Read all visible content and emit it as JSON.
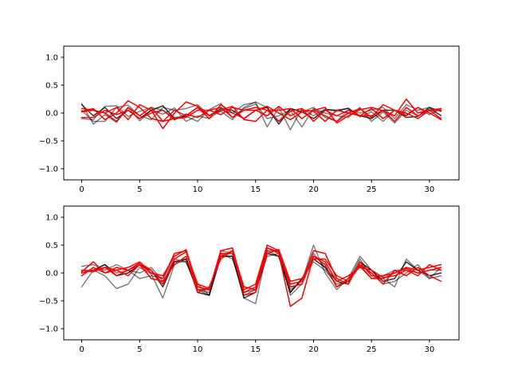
{
  "chart_data": [
    {
      "type": "line",
      "title": "",
      "xlabel": "",
      "ylabel": "",
      "xlim": [
        -1.55,
        32.55
      ],
      "ylim": [
        -1.2,
        1.2
      ],
      "xticks": [
        0,
        5,
        10,
        15,
        20,
        25,
        30
      ],
      "yticks": [
        -1.0,
        -0.5,
        0.0,
        0.5,
        1.0
      ],
      "ytick_labels": [
        "−1.0",
        "−0.5",
        "0.0",
        "0.5",
        "1.0"
      ],
      "grid": false,
      "legend": false,
      "series": [
        {
          "color": "#000000",
          "opacity": 0.5,
          "values": [
            0.17,
            -0.2,
            -0.03,
            -0.17,
            0.1,
            -0.14,
            0.05,
            -0.02,
            0.09,
            -0.15,
            -0.05,
            -0.1,
            0.05,
            0.0,
            0.15,
            0.19,
            -0.25,
            0.1,
            -0.3,
            0.08,
            -0.05,
            0.07,
            0.03,
            0.09,
            -0.07,
            0.02,
            -0.15,
            0.05,
            -0.03,
            0.1,
            -0.03,
            0.08
          ]
        },
        {
          "color": "#000000",
          "opacity": 0.5,
          "values": [
            -0.1,
            -0.12,
            0.12,
            0.13,
            -0.06,
            0.03,
            0.1,
            0.05,
            -0.08,
            -0.06,
            -0.15,
            0.06,
            0.17,
            -0.08,
            0.08,
            0.16,
            -0.1,
            -0.05,
            0.05,
            -0.25,
            0.08,
            0.0,
            -0.05,
            -0.08,
            0.1,
            -0.15,
            0.02,
            -0.18,
            0.05,
            -0.05,
            0.07,
            -0.04
          ]
        },
        {
          "color": "#000000",
          "opacity": 0.5,
          "values": [
            0.05,
            -0.15,
            -0.15,
            0.1,
            0.14,
            -0.05,
            -0.12,
            0.1,
            0.05,
            0.08,
            0.15,
            -0.04,
            0.03,
            -0.12,
            0.1,
            0.2,
            0.1,
            -0.15,
            0.08,
            0.02,
            0.1,
            -0.08,
            -0.15,
            0.05,
            0.0,
            0.05,
            0.1,
            -0.1,
            0.15,
            0.05,
            0.1,
            -0.05
          ]
        },
        {
          "color": "#000000",
          "opacity": 0.8,
          "values": [
            0.15,
            -0.05,
            0.1,
            -0.1,
            0.05,
            -0.1,
            0.05,
            0.13,
            -0.1,
            -0.05,
            0.1,
            -0.05,
            0.08,
            0.05,
            -0.1,
            0.05,
            0.1,
            -0.2,
            0.08,
            0.02,
            -0.1,
            0.06,
            0.05,
            0.08,
            -0.05,
            -0.1,
            0.05,
            0.05,
            -0.08,
            -0.06,
            0.1,
            0.03
          ]
        },
        {
          "color": "#ff0000",
          "opacity": 1.0,
          "values": [
            0.03,
            0.08,
            -0.12,
            0.0,
            0.22,
            0.1,
            -0.1,
            -0.15,
            0.05,
            -0.05,
            0.1,
            -0.1,
            0.15,
            0.0,
            -0.1,
            0.05,
            0.12,
            0.0,
            -0.12,
            0.02,
            0.05,
            0.1,
            -0.18,
            -0.05,
            0.06,
            0.1,
            0.04,
            -0.05,
            0.25,
            0.0,
            0.05,
            0.05
          ]
        },
        {
          "color": "#ff0000",
          "opacity": 1.0,
          "values": [
            0.08,
            0.05,
            0.0,
            0.1,
            -0.12,
            0.15,
            0.05,
            -0.28,
            0.0,
            0.2,
            0.12,
            -0.05,
            0.05,
            0.12,
            -0.12,
            -0.15,
            0.05,
            0.05,
            0.08,
            -0.1,
            0.05,
            -0.05,
            -0.15,
            0.0,
            0.08,
            -0.08,
            0.15,
            0.05,
            0.0,
            -0.1,
            0.05,
            -0.1
          ]
        },
        {
          "color": "#ff0000",
          "opacity": 1.0,
          "values": [
            -0.08,
            -0.08,
            0.05,
            -0.03,
            0.05,
            -0.1,
            0.0,
            0.05,
            -0.12,
            -0.02,
            -0.08,
            0.05,
            -0.03,
            0.1,
            0.05,
            0.1,
            0.05,
            -0.15,
            0.03,
            0.08,
            -0.15,
            0.05,
            -0.05,
            0.05,
            -0.05,
            0.08,
            -0.1,
            0.05,
            -0.05,
            0.1,
            0.0,
            -0.12
          ]
        },
        {
          "color": "#ff0000",
          "opacity": 1.0,
          "values": [
            0.02,
            0.05,
            0.0,
            -0.15,
            0.1,
            -0.05,
            0.1,
            -0.15,
            -0.1,
            -0.08,
            0.05,
            0.05,
            0.1,
            -0.08,
            0.05,
            0.05,
            -0.05,
            0.12,
            -0.05,
            0.05,
            0.03,
            -0.15,
            0.05,
            0.0,
            -0.05,
            -0.05,
            0.05,
            -0.15,
            0.1,
            -0.05,
            0.05,
            0.08
          ]
        }
      ]
    },
    {
      "type": "line",
      "title": "",
      "xlabel": "",
      "ylabel": "",
      "xlim": [
        -1.55,
        32.55
      ],
      "ylim": [
        -1.2,
        1.2
      ],
      "xticks": [
        0,
        5,
        10,
        15,
        20,
        25,
        30
      ],
      "yticks": [
        -1.0,
        -0.5,
        0.0,
        0.5,
        1.0
      ],
      "ytick_labels": [
        "−1.0",
        "−0.5",
        "0.0",
        "0.5",
        "1.0"
      ],
      "grid": false,
      "legend": false,
      "series": [
        {
          "color": "#000000",
          "opacity": 0.5,
          "values": [
            -0.25,
            0.05,
            -0.05,
            -0.28,
            -0.2,
            0.1,
            -0.02,
            -0.45,
            0.15,
            0.25,
            -0.2,
            -0.4,
            0.3,
            0.3,
            -0.4,
            -0.3,
            0.3,
            0.35,
            -0.3,
            -0.15,
            0.5,
            0.0,
            -0.3,
            -0.1,
            0.3,
            0.05,
            -0.2,
            -0.15,
            0.0,
            0.15,
            -0.1,
            -0.05
          ]
        },
        {
          "color": "#000000",
          "opacity": 0.5,
          "values": [
            0.12,
            0.15,
            0.05,
            0.15,
            0.05,
            0.0,
            0.1,
            -0.15,
            0.2,
            0.2,
            -0.3,
            -0.35,
            0.4,
            0.35,
            -0.45,
            -0.55,
            0.4,
            0.4,
            -0.4,
            -0.2,
            0.35,
            0.1,
            -0.25,
            -0.15,
            0.15,
            -0.1,
            -0.05,
            0.05,
            0.05,
            0.0,
            0.05,
            0.05
          ]
        },
        {
          "color": "#000000",
          "opacity": 0.5,
          "values": [
            0.05,
            0.05,
            0.15,
            0.0,
            0.05,
            -0.1,
            -0.05,
            -0.1,
            0.25,
            0.2,
            -0.3,
            -0.4,
            0.35,
            0.25,
            -0.35,
            -0.3,
            0.4,
            0.3,
            -0.35,
            -0.1,
            0.2,
            0.05,
            -0.2,
            -0.15,
            0.25,
            -0.05,
            -0.1,
            -0.25,
            0.25,
            0.05,
            -0.1,
            0.1
          ]
        },
        {
          "color": "#000000",
          "opacity": 0.8,
          "values": [
            0.0,
            0.05,
            0.15,
            -0.05,
            0.0,
            0.15,
            0.05,
            -0.25,
            0.2,
            0.25,
            -0.35,
            -0.4,
            0.3,
            0.3,
            -0.45,
            -0.35,
            0.35,
            0.3,
            -0.35,
            -0.1,
            0.25,
            0.1,
            -0.15,
            -0.2,
            0.2,
            0.05,
            -0.15,
            -0.1,
            0.2,
            0.05,
            -0.05,
            0.0
          ]
        },
        {
          "color": "#ff0000",
          "opacity": 1.0,
          "values": [
            0.02,
            0.2,
            0.0,
            0.05,
            0.1,
            0.2,
            0.0,
            -0.1,
            0.35,
            0.4,
            -0.3,
            -0.3,
            0.4,
            0.45,
            -0.3,
            -0.2,
            0.5,
            0.4,
            -0.2,
            -0.15,
            0.4,
            0.35,
            -0.1,
            -0.2,
            0.2,
            -0.05,
            -0.05,
            0.0,
            0.1,
            0.05,
            0.1,
            0.15
          ]
        },
        {
          "color": "#ff0000",
          "opacity": 1.0,
          "values": [
            -0.05,
            0.1,
            0.0,
            0.1,
            0.05,
            0.15,
            -0.1,
            -0.15,
            0.15,
            0.3,
            -0.35,
            -0.25,
            0.25,
            0.4,
            -0.4,
            -0.35,
            0.45,
            0.35,
            -0.6,
            -0.45,
            0.3,
            0.15,
            -0.25,
            -0.1,
            0.15,
            0.0,
            -0.2,
            0.05,
            -0.05,
            0.1,
            -0.05,
            -0.15
          ]
        },
        {
          "color": "#ff0000",
          "opacity": 1.0,
          "values": [
            0.05,
            0.02,
            0.1,
            -0.05,
            0.05,
            0.18,
            0.05,
            -0.2,
            0.25,
            0.38,
            -0.2,
            -0.28,
            0.3,
            0.4,
            -0.25,
            -0.3,
            0.35,
            0.42,
            -0.15,
            -0.1,
            0.25,
            0.25,
            -0.05,
            -0.15,
            0.12,
            -0.1,
            -0.1,
            0.0,
            0.08,
            0.0,
            0.05,
            0.1
          ]
        },
        {
          "color": "#ff0000",
          "opacity": 1.0,
          "values": [
            0.0,
            0.05,
            0.1,
            0.05,
            -0.05,
            0.15,
            0.0,
            -0.05,
            0.3,
            0.42,
            -0.25,
            -0.3,
            0.35,
            0.35,
            -0.35,
            -0.25,
            0.45,
            0.38,
            -0.25,
            -0.2,
            0.3,
            0.2,
            -0.15,
            -0.05,
            0.1,
            0.05,
            -0.08,
            -0.05,
            0.05,
            -0.05,
            0.15,
            0.05
          ]
        }
      ]
    }
  ]
}
